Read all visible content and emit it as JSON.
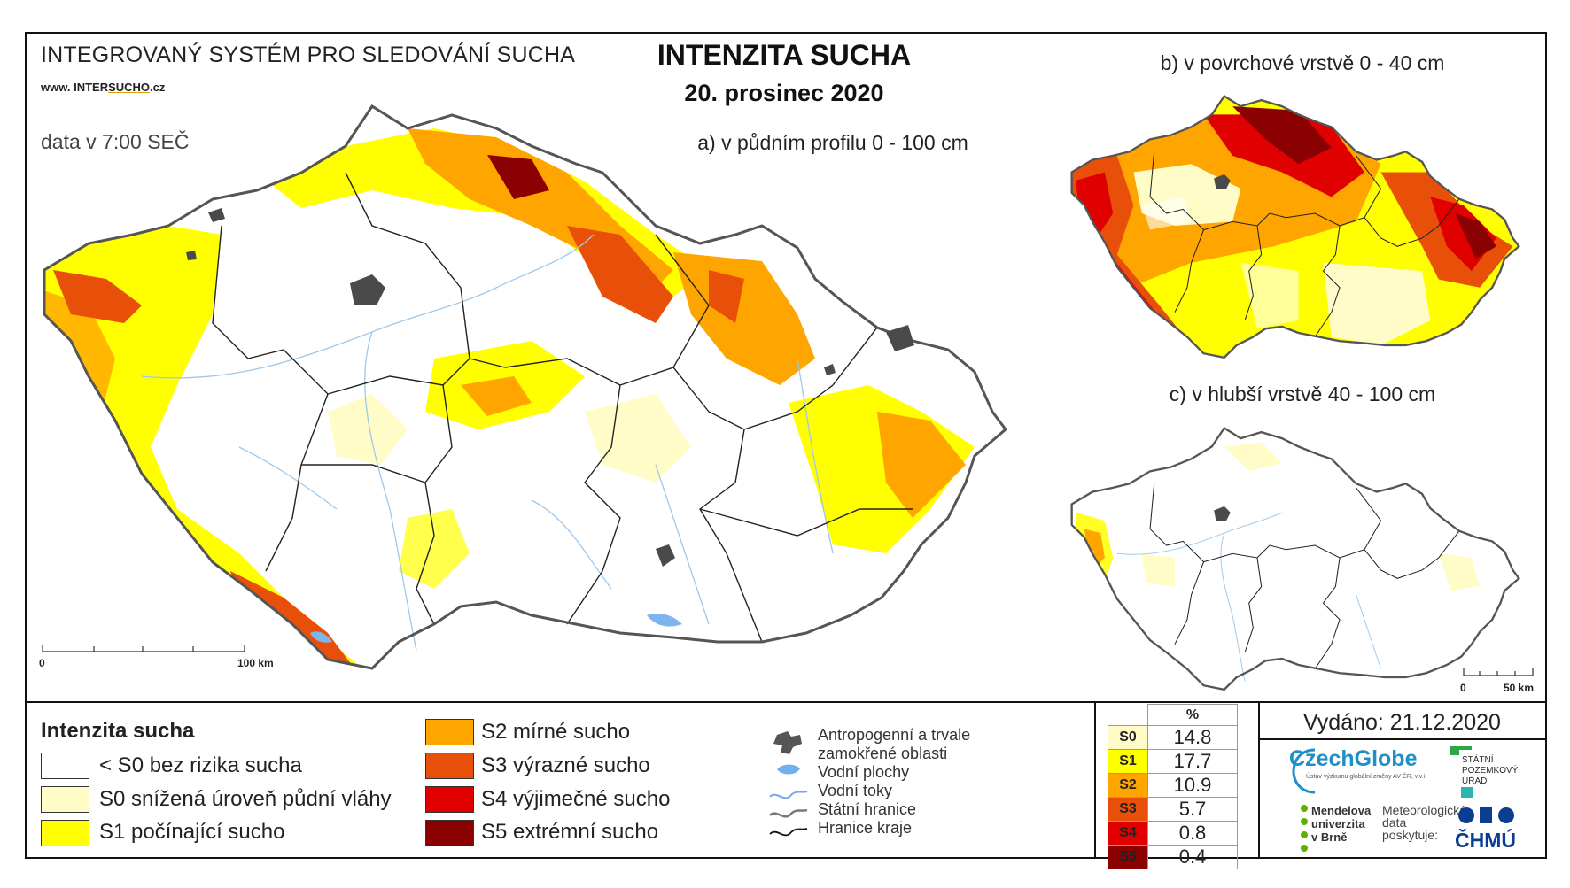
{
  "header": {
    "system_title": "INTEGROVANÝ SYSTÉM PRO SLEDOVÁNÍ SUCHA",
    "website_prefix": "www. INTER",
    "website_underlined": "SUCHO",
    "website_suffix": ".cz",
    "data_time": "data v 7:00 SEČ",
    "map_title": "INTENZITA SUCHA",
    "map_date": "20. prosinec 2020"
  },
  "maps": {
    "main_label": "a) v půdním profilu 0 - 100 cm",
    "surface_label": "b) v povrchové vrstvě 0 - 40 cm",
    "deep_label": "c) v hlubší vrstvě 40 - 100 cm",
    "main_scale_start": "0",
    "main_scale_end": "100 km",
    "small_scale_start": "0",
    "small_scale_end": "50 km"
  },
  "legend": {
    "title": "Intenzita sucha",
    "classes": [
      {
        "label": "< S0 bez rizika sucha",
        "color": "#ffffff"
      },
      {
        "label": "S0 snížená úroveň půdní vláhy",
        "color": "#fffcc8"
      },
      {
        "label": "S1 počínající sucho",
        "color": "#ffff00"
      },
      {
        "label": "S2 mírné sucho",
        "color": "#ffa500"
      },
      {
        "label": "S3 výrazné sucho",
        "color": "#e8500a"
      },
      {
        "label": "S4 výjimečné sucho",
        "color": "#e00000"
      },
      {
        "label": "S5 extrémní sucho",
        "color": "#8b0000"
      }
    ],
    "symbols": {
      "urban_line1": "Antropogenní a trvale",
      "urban_line2": "zamokřené oblasti",
      "water_bodies": "Vodní plochy",
      "rivers": "Vodní toky",
      "state_border": "Státní hranice",
      "region_border": "Hranice kraje"
    }
  },
  "stats": {
    "header": "%",
    "rows": [
      {
        "class": "S0",
        "value": "14.8",
        "color": "#fffcc8",
        "text_color": "#000000"
      },
      {
        "class": "S1",
        "value": "17.7",
        "color": "#ffff00",
        "text_color": "#000000"
      },
      {
        "class": "S2",
        "value": "10.9",
        "color": "#ffa500",
        "text_color": "#000000"
      },
      {
        "class": "S3",
        "value": "5.7",
        "color": "#e8500a",
        "text_color": "#000000"
      },
      {
        "class": "S4",
        "value": "0.8",
        "color": "#e00000",
        "text_color": "#000000"
      },
      {
        "class": "S5",
        "value": "0.4",
        "color": "#8b0000",
        "text_color": "#000000"
      }
    ]
  },
  "footer": {
    "issued": "Vydáno: 21.12.2020",
    "czechglobe": "CzechGlobe",
    "czechglobe_sub": "Ústav výzkumu globální změny AV ČR, v.v.i.",
    "spu_line1": "STÁTNÍ",
    "spu_line2": "POZEMKOVÝ",
    "spu_line3": "ÚŘAD",
    "mendel_line1": "Mendelova",
    "mendel_line2": "univerzita",
    "mendel_line3": "v Brně",
    "met_line1": "Meteorologická",
    "met_line2": "data",
    "met_line3": "poskytuje:",
    "chmu": "ČHMÚ"
  }
}
